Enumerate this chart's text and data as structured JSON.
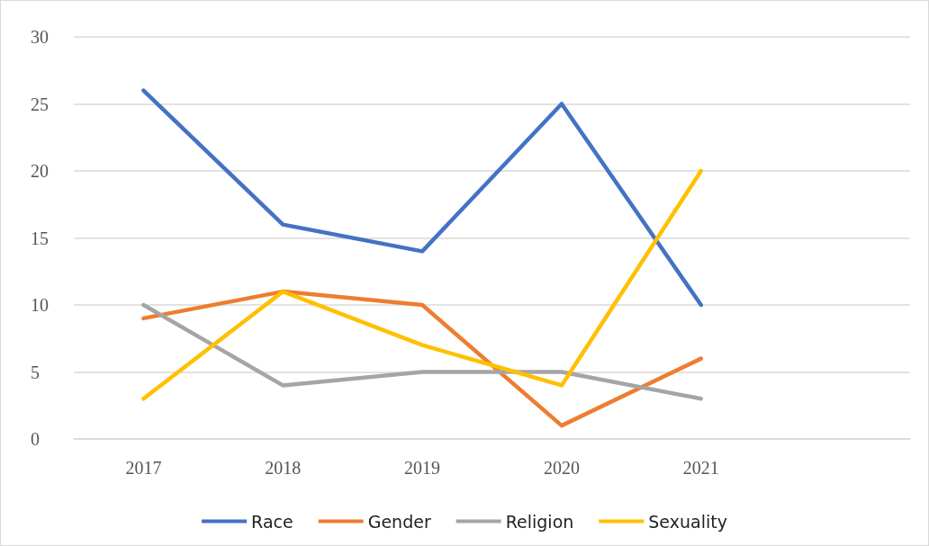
{
  "chart_data": {
    "type": "line",
    "categories": [
      "2017",
      "2018",
      "2019",
      "2020",
      "2021",
      null
    ],
    "series": [
      {
        "name": "Race",
        "color": "#4472c4",
        "values": [
          26,
          16,
          14,
          25,
          10,
          null
        ]
      },
      {
        "name": "Gender",
        "color": "#ed7d31",
        "values": [
          9,
          11,
          10,
          1,
          6,
          null
        ]
      },
      {
        "name": "Religion",
        "color": "#a5a5a5",
        "values": [
          10,
          4,
          5,
          5,
          3,
          null
        ]
      },
      {
        "name": "Sexuality",
        "color": "#ffc000",
        "values": [
          3,
          11,
          7,
          4,
          20,
          null
        ]
      }
    ],
    "ylim": [
      0,
      30
    ],
    "yticks": [
      0,
      5,
      10,
      15,
      20,
      25,
      30
    ],
    "grid": "y",
    "legend": "bottom",
    "marker": "none",
    "line_style": "solid"
  }
}
